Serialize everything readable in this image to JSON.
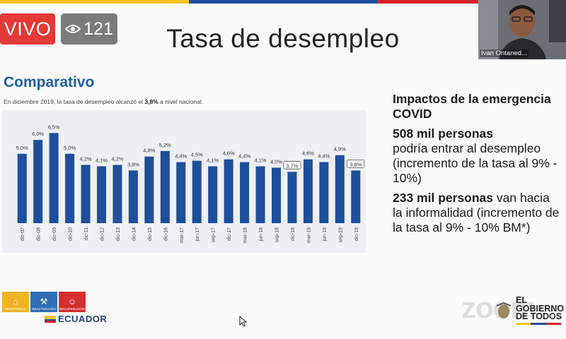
{
  "live": {
    "label": "VIVO"
  },
  "viewers": {
    "count": "121",
    "icon": "eye-icon"
  },
  "video": {
    "participant_name": "Ivan Ontaned..."
  },
  "slide": {
    "title": "Tasa de desempleo",
    "section": "Comparativo",
    "subtitle_pre": "En diciembre 2019, la tasa de desempleo alcanzó el ",
    "subtitle_value": "3,8%",
    "subtitle_post": " a nivel nacional."
  },
  "impacts": {
    "heading": "Impactos de la emergencia COVID",
    "stat1_bold": "508 mil personas",
    "stat1_text": "podría entrar al desempleo (incremento de la tasa al 9% - 10%)",
    "stat2_bold": "233 mil personas",
    "stat2_text": " van hacia la informalidad (incremento de la tasa al 9% - 10% BM*)"
  },
  "logos": {
    "items": [
      "RESISTENCIA",
      "REACTIVACIÓN",
      "RECUPERACIÓN"
    ],
    "country": "ECUADOR",
    "government_line1": "EL",
    "government_line2": "GOBIERNO",
    "government_line3": "DE TODOS"
  },
  "zoom": {
    "watermark": "zoom"
  },
  "colors": {
    "bar": "#1f4e9b",
    "title_blue": "#1f5fa8",
    "live_red": "#e53935"
  },
  "chart_data": {
    "type": "bar",
    "title": "Comparativo",
    "categories": [
      "dic-07",
      "dic-08",
      "dic-09",
      "dic-10",
      "dic-11",
      "dic-12",
      "dic-13",
      "dic-14",
      "dic-15",
      "dic-16",
      "mar-17",
      "jun-17",
      "sep-17",
      "dic-17",
      "mar-18",
      "jun-18",
      "sep-18",
      "dic-18",
      "mar-19",
      "jun-19",
      "sep-19",
      "dic-19"
    ],
    "values": [
      5.0,
      6.0,
      6.5,
      5.0,
      4.2,
      4.1,
      4.2,
      3.8,
      4.8,
      5.2,
      4.4,
      4.5,
      4.1,
      4.6,
      4.4,
      4.1,
      4.0,
      3.7,
      4.6,
      4.4,
      4.9,
      3.8
    ],
    "labels": [
      "5,0%",
      "6,0%",
      "6,5%",
      "5,0%",
      "4,2%",
      "4,1%",
      "4,2%",
      "3,8%",
      "4,8%",
      "5,2%",
      "4,4%",
      "4,5%",
      "4,1%",
      "4,6%",
      "4,4%",
      "4,1%",
      "4,0%",
      "3,7%",
      "4,6%",
      "4,4%",
      "4,9%",
      "3,8%"
    ],
    "highlighted": [
      "dic-18",
      "dic-19"
    ],
    "ylim": [
      0,
      7
    ],
    "grid": false,
    "xlabel": "",
    "ylabel": ""
  }
}
